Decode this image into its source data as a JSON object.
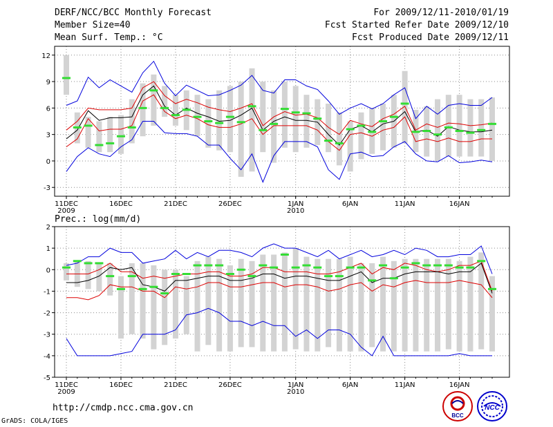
{
  "header": {
    "title": "DERF/NCC/BCC Monthly Forecast",
    "member_size": "Member Size=40",
    "variable_temp": "Mean Surf. Temp.: °C",
    "for_period": "For 2009/12/11-2010/01/19",
    "fcst_started": "Fcst Started Refer Date 2009/12/10",
    "fcst_produced": "Fcst Produced Date 2009/12/11"
  },
  "footer": {
    "url": "http://cmdp.ncc.cma.gov.cn",
    "grads": "GrADS: COLA/IGES",
    "logo_left_text": "BCC",
    "logo_right_text": "NCC"
  },
  "colors": {
    "envelope": "#0000dd",
    "spread": "#dd0000",
    "mean": "#000000",
    "median": "#33dd33",
    "box": "#d3d3d3",
    "grid": "#888888"
  },
  "chart_data": [
    {
      "type": "box",
      "title": "Mean Surf. Temp.: °C",
      "days": 40,
      "ylim": [
        -4,
        13
      ],
      "yticks": [
        12,
        9,
        6,
        3,
        0,
        -3
      ],
      "xtick_labels": [
        {
          "day": 0,
          "label": "11DEC",
          "sub": "2009"
        },
        {
          "day": 5,
          "label": "16DEC",
          "sub": ""
        },
        {
          "day": 10,
          "label": "21DEC",
          "sub": ""
        },
        {
          "day": 15,
          "label": "26DEC",
          "sub": ""
        },
        {
          "day": 21,
          "label": "1JAN",
          "sub": "2010"
        },
        {
          "day": 26,
          "label": "6JAN",
          "sub": ""
        },
        {
          "day": 31,
          "label": "11JAN",
          "sub": ""
        },
        {
          "day": 36,
          "label": "16JAN",
          "sub": ""
        }
      ],
      "box_low": [
        7.5,
        2.0,
        1.5,
        1.0,
        1.0,
        0.8,
        2.0,
        2.8,
        4.0,
        5.0,
        4.0,
        3.5,
        2.8,
        1.5,
        1.2,
        1.0,
        -1.8,
        -1.2,
        1.0,
        -0.2,
        1.5,
        1.0,
        1.5,
        1.8,
        1.0,
        -0.5,
        -1.2,
        0.2,
        0.8,
        1.2,
        1.5,
        2.0,
        1.0,
        0.5,
        0.0,
        0.5,
        0.5,
        0.5,
        0.5,
        0.0
      ],
      "box_high": [
        12.0,
        5.5,
        5.0,
        4.5,
        5.0,
        5.2,
        7.0,
        8.8,
        9.8,
        8.5,
        7.5,
        8.0,
        7.5,
        7.0,
        8.0,
        8.5,
        9.0,
        10.5,
        9.0,
        8.0,
        9.0,
        8.5,
        7.5,
        7.0,
        6.5,
        5.5,
        4.5,
        5.5,
        6.0,
        6.5,
        7.5,
        10.2,
        5.8,
        6.2,
        7.0,
        7.5,
        7.5,
        7.0,
        7.0,
        7.2
      ],
      "median": [
        9.4,
        3.8,
        4.0,
        1.8,
        2.0,
        2.8,
        3.8,
        6.0,
        8.0,
        6.0,
        5.2,
        5.8,
        5.0,
        4.5,
        4.3,
        5.0,
        4.4,
        6.2,
        3.5,
        4.2,
        5.9,
        5.5,
        5.4,
        4.8,
        2.3,
        2.0,
        3.6,
        4.0,
        3.3,
        4.5,
        5.0,
        6.5,
        3.3,
        3.4,
        3.0,
        3.8,
        3.4,
        3.2,
        3.5,
        4.2
      ],
      "envelope_max": [
        6.3,
        6.8,
        9.5,
        8.3,
        9.2,
        8.5,
        7.8,
        10.0,
        11.3,
        8.8,
        7.4,
        8.6,
        8.0,
        7.4,
        7.5,
        8.0,
        8.6,
        9.7,
        8.0,
        7.7,
        9.2,
        9.2,
        8.5,
        8.1,
        6.8,
        5.3,
        6.0,
        6.5,
        5.9,
        6.5,
        7.5,
        8.3,
        4.8,
        6.2,
        5.3,
        6.3,
        6.5,
        6.3,
        6.3,
        7.2
      ],
      "spread_high": [
        3.5,
        4.5,
        6.0,
        5.8,
        5.8,
        5.8,
        6.0,
        8.3,
        9.0,
        7.4,
        6.5,
        7.0,
        6.6,
        6.1,
        5.8,
        5.6,
        6.0,
        6.5,
        4.0,
        5.0,
        5.6,
        5.2,
        5.3,
        4.9,
        3.8,
        3.0,
        4.6,
        4.2,
        3.9,
        4.8,
        5.3,
        6.2,
        3.5,
        4.2,
        3.8,
        4.3,
        4.2,
        4.0,
        4.1,
        4.3
      ],
      "mean": [
        2.5,
        3.5,
        5.7,
        4.6,
        4.9,
        4.9,
        5.0,
        7.5,
        8.5,
        6.2,
        5.2,
        6.0,
        5.4,
        5.0,
        4.5,
        4.6,
        5.2,
        6.0,
        3.5,
        4.5,
        5.0,
        4.6,
        4.6,
        4.4,
        3.0,
        1.8,
        3.6,
        4.0,
        3.3,
        4.2,
        4.5,
        5.6,
        3.3,
        3.5,
        2.8,
        3.9,
        3.5,
        3.3,
        3.3,
        3.5
      ],
      "spread_low": [
        1.6,
        2.5,
        4.8,
        3.4,
        3.6,
        3.6,
        4.0,
        6.8,
        7.5,
        5.6,
        4.8,
        5.2,
        4.8,
        4.1,
        3.8,
        3.8,
        4.2,
        4.8,
        3.0,
        4.0,
        4.0,
        4.0,
        4.0,
        3.5,
        2.2,
        1.2,
        3.0,
        3.2,
        2.8,
        3.5,
        3.8,
        5.0,
        2.2,
        2.5,
        2.2,
        2.6,
        2.2,
        2.2,
        2.5,
        2.5
      ],
      "envelope_min": [
        -1.2,
        0.5,
        1.5,
        0.8,
        0.5,
        1.6,
        2.4,
        4.5,
        4.5,
        3.2,
        3.1,
        3.1,
        2.8,
        1.8,
        1.8,
        0.3,
        -1.0,
        0.8,
        -2.4,
        0.6,
        2.2,
        2.2,
        2.2,
        1.6,
        -1.0,
        -2.1,
        0.8,
        1.0,
        0.5,
        0.6,
        1.6,
        2.2,
        0.8,
        0.0,
        -0.1,
        0.6,
        -0.2,
        -0.1,
        0.1,
        -0.1
      ]
    },
    {
      "type": "box",
      "title": "Prec.: log(mm/d)",
      "days": 40,
      "ylim": [
        -5,
        2
      ],
      "yticks": [
        2,
        1,
        0,
        -1,
        -2,
        -3,
        -4,
        -5
      ],
      "xtick_labels": [
        {
          "day": 0,
          "label": "11DEC",
          "sub": "2009"
        },
        {
          "day": 5,
          "label": "16DEC",
          "sub": ""
        },
        {
          "day": 10,
          "label": "21DEC",
          "sub": ""
        },
        {
          "day": 15,
          "label": "26DEC",
          "sub": ""
        },
        {
          "day": 21,
          "label": "1JAN",
          "sub": "2010"
        },
        {
          "day": 26,
          "label": "6JAN",
          "sub": ""
        },
        {
          "day": 31,
          "label": "11JAN",
          "sub": ""
        },
        {
          "day": 36,
          "label": "16JAN",
          "sub": ""
        }
      ],
      "box_low": [
        -0.5,
        -0.8,
        -0.9,
        -1.0,
        -1.2,
        -3.2,
        -3.0,
        -3.2,
        -3.7,
        -3.5,
        -3.2,
        -3.0,
        -3.8,
        -3.5,
        -3.8,
        -3.8,
        -3.6,
        -3.6,
        -3.8,
        -3.8,
        -3.8,
        -3.7,
        -3.8,
        -3.8,
        -3.6,
        -3.8,
        -3.8,
        -3.8,
        -3.6,
        -3.8,
        -3.8,
        -3.8,
        -3.8,
        -3.8,
        -3.8,
        -3.7,
        -3.8,
        -3.8,
        -3.7,
        -3.8
      ],
      "box_high": [
        0.3,
        0.4,
        0.4,
        0.3,
        0.3,
        -0.3,
        0.3,
        0.3,
        0.2,
        0.0,
        0.0,
        -0.3,
        0.4,
        0.6,
        0.5,
        0.2,
        0.5,
        0.4,
        0.7,
        0.7,
        0.8,
        1.0,
        0.6,
        0.5,
        0.5,
        0.5,
        0.6,
        0.3,
        0.3,
        0.6,
        0.4,
        0.5,
        0.5,
        0.5,
        0.5,
        0.5,
        0.4,
        0.6,
        0.8,
        -0.3
      ],
      "median": [
        0.1,
        0.4,
        0.3,
        0.3,
        -0.3,
        -0.9,
        -0.3,
        -0.9,
        -0.8,
        -1.1,
        -0.2,
        -0.2,
        0.2,
        0.2,
        0.2,
        -0.2,
        0.0,
        -0.3,
        0.2,
        0.1,
        0.7,
        0.1,
        0.2,
        0.1,
        -0.3,
        -0.3,
        0.1,
        0.1,
        -0.5,
        0.2,
        -0.4,
        0.1,
        0.3,
        0.2,
        0.2,
        0.2,
        0.1,
        0.1,
        0.4,
        -0.9
      ],
      "envelope_max": [
        0.2,
        0.3,
        0.6,
        0.6,
        1.0,
        0.8,
        0.8,
        0.3,
        0.4,
        0.5,
        0.9,
        0.5,
        0.8,
        0.6,
        0.9,
        0.9,
        0.8,
        0.6,
        1.0,
        1.2,
        1.0,
        1.0,
        0.8,
        0.6,
        0.9,
        0.5,
        0.7,
        0.9,
        0.6,
        0.7,
        0.9,
        0.7,
        1.0,
        0.9,
        0.6,
        0.6,
        0.7,
        0.7,
        1.1,
        -0.2
      ],
      "spread_high": [
        -0.2,
        -0.2,
        -0.2,
        0.0,
        0.3,
        -0.1,
        -0.1,
        -0.4,
        -0.3,
        -0.4,
        -0.3,
        -0.2,
        -0.2,
        -0.1,
        -0.1,
        -0.3,
        -0.3,
        -0.2,
        0.1,
        0.1,
        -0.1,
        -0.1,
        -0.1,
        -0.2,
        -0.2,
        -0.1,
        0.1,
        0.3,
        -0.2,
        0.1,
        0.0,
        0.3,
        0.2,
        0.0,
        -0.1,
        0.0,
        0.2,
        0.2,
        0.4,
        -1.0
      ],
      "mean": [
        -0.6,
        -0.6,
        -0.5,
        -0.3,
        0.1,
        0.0,
        0.1,
        -0.7,
        -0.8,
        -1.0,
        -0.5,
        -0.5,
        -0.4,
        -0.3,
        -0.3,
        -0.5,
        -0.5,
        -0.4,
        -0.2,
        -0.2,
        -0.4,
        -0.3,
        -0.3,
        -0.4,
        -0.5,
        -0.5,
        -0.3,
        -0.1,
        -0.6,
        -0.4,
        -0.4,
        -0.2,
        -0.1,
        -0.1,
        -0.1,
        -0.2,
        -0.1,
        -0.1,
        0.3,
        -1.1
      ],
      "spread_low": [
        -1.3,
        -1.3,
        -1.4,
        -1.2,
        -0.7,
        -0.8,
        -0.8,
        -1.0,
        -1.0,
        -1.3,
        -0.8,
        -0.9,
        -0.8,
        -0.6,
        -0.6,
        -0.8,
        -0.8,
        -0.7,
        -0.6,
        -0.6,
        -0.8,
        -0.7,
        -0.7,
        -0.8,
        -1.0,
        -0.9,
        -0.7,
        -0.6,
        -1.0,
        -0.7,
        -0.8,
        -0.6,
        -0.5,
        -0.6,
        -0.6,
        -0.6,
        -0.5,
        -0.6,
        -0.7,
        -1.3
      ],
      "envelope_min": [
        -3.2,
        -4.0,
        -4.0,
        -4.0,
        -4.0,
        -3.9,
        -3.8,
        -3.0,
        -3.0,
        -3.0,
        -2.8,
        -2.1,
        -2.0,
        -1.8,
        -2.0,
        -2.4,
        -2.4,
        -2.6,
        -2.4,
        -2.6,
        -2.6,
        -3.1,
        -2.8,
        -3.2,
        -2.8,
        -2.8,
        -3.0,
        -3.6,
        -4.0,
        -3.1,
        -4.0,
        -4.0,
        -4.0,
        -4.0,
        -4.0,
        -4.0,
        -3.9,
        -4.0,
        -4.0,
        -4.0
      ]
    }
  ]
}
